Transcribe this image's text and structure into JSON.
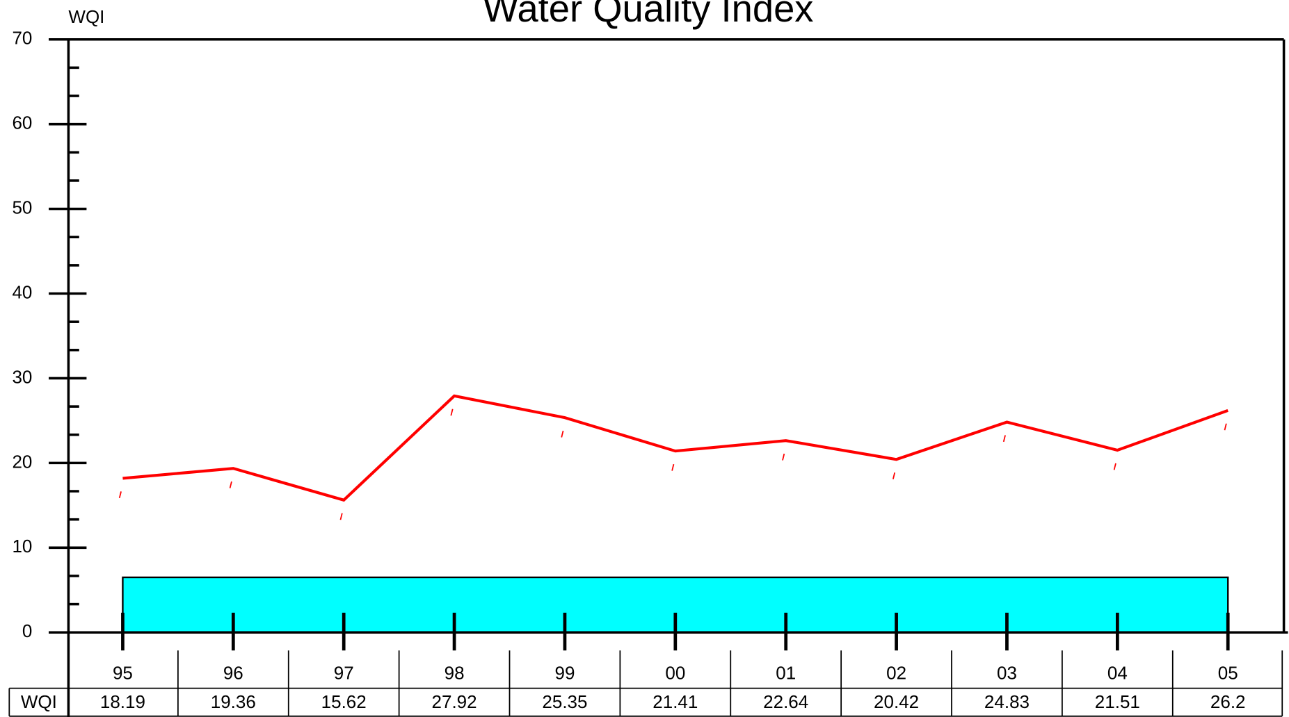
{
  "chart_data": {
    "type": "line",
    "title": "Water Quality Index",
    "y_label": "WQI",
    "categories": [
      "95",
      "96",
      "97",
      "98",
      "99",
      "00",
      "01",
      "02",
      "03",
      "04",
      "05"
    ],
    "series": [
      {
        "name": "WQI",
        "color": "#ff0000",
        "values": [
          18.19,
          19.36,
          15.62,
          27.92,
          25.35,
          21.41,
          22.64,
          20.42,
          24.83,
          21.51,
          26.2
        ]
      }
    ],
    "band": {
      "value": 6.5,
      "color": "#00ffff"
    },
    "ylim": [
      0,
      70
    ],
    "yticks": [
      0,
      10,
      20,
      30,
      40,
      50,
      60,
      70
    ]
  }
}
